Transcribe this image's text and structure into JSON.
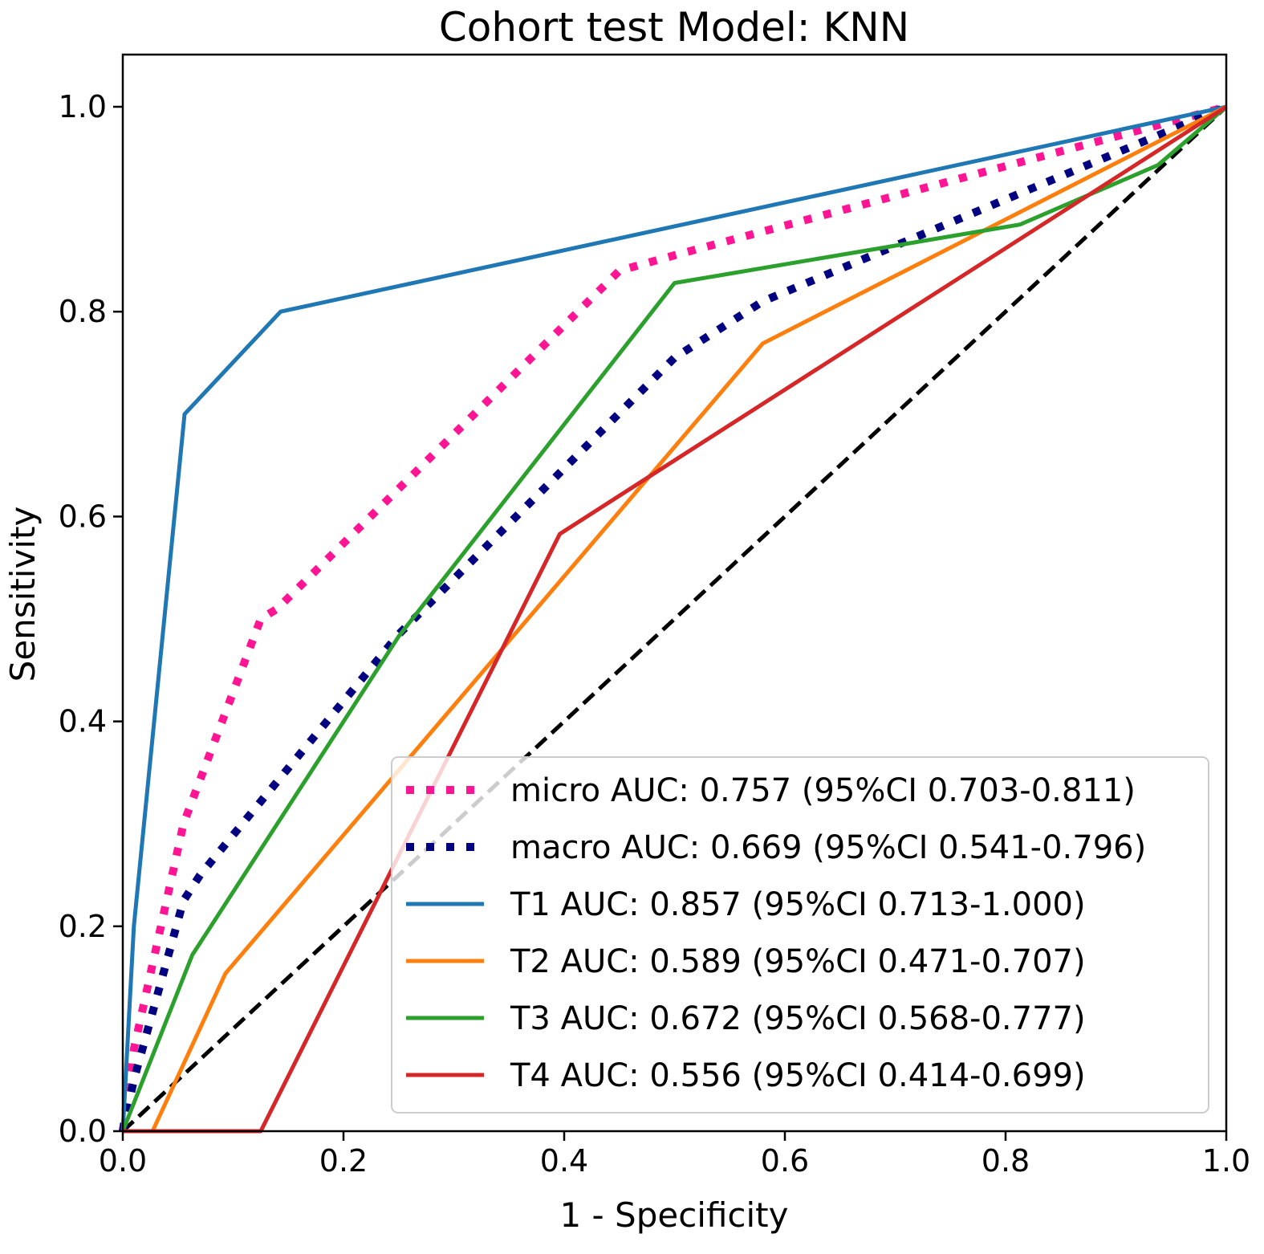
{
  "chart_data": {
    "type": "line",
    "title": "Cohort test Model: KNN",
    "xlabel": "1 - Specificity",
    "ylabel": "Sensitivity",
    "xlim": [
      0,
      1
    ],
    "ylim": [
      0,
      1.05
    ],
    "xticks": [
      "0.0",
      "0.2",
      "0.4",
      "0.6",
      "0.8",
      "1.0"
    ],
    "yticks": [
      "0.0",
      "0.2",
      "0.4",
      "0.6",
      "0.8",
      "1.0"
    ],
    "grid": false,
    "legend_position": "lower-right",
    "series": [
      {
        "key": "micro",
        "name": "micro AUC: 0.757 (95%CI 0.703-0.811)",
        "color": "#ff1493",
        "style": "dotted",
        "x": [
          0,
          0.01,
          0.055,
          0.125,
          0.14,
          0.45,
          0.5,
          1.0
        ],
        "y": [
          0,
          0.08,
          0.3,
          0.5,
          0.51,
          0.84,
          0.855,
          1.0
        ]
      },
      {
        "key": "macro",
        "name": "macro AUC: 0.669 (95%CI 0.541-0.796)",
        "color": "#000080",
        "style": "dotted",
        "x": [
          0,
          0.01,
          0.055,
          0.07,
          0.25,
          0.5,
          0.58,
          1.0
        ],
        "y": [
          0,
          0.05,
          0.225,
          0.25,
          0.485,
          0.755,
          0.81,
          1.0
        ]
      },
      {
        "key": "T1",
        "name": "T1 AUC: 0.857 (95%CI 0.713-1.000)",
        "color": "#1f77b4",
        "style": "solid",
        "x": [
          0,
          0.01,
          0.056,
          0.143,
          1.0
        ],
        "y": [
          0,
          0.2,
          0.7,
          0.8,
          1.0
        ]
      },
      {
        "key": "T2",
        "name": "T2 AUC: 0.589 (95%CI 0.471-0.707)",
        "color": "#ff7f0e",
        "style": "solid",
        "x": [
          0.027,
          0.093,
          0.58,
          1.0
        ],
        "y": [
          0,
          0.154,
          0.769,
          1.0
        ]
      },
      {
        "key": "T3",
        "name": "T3 AUC: 0.672 (95%CI 0.568-0.777)",
        "color": "#2ca02c",
        "style": "solid",
        "x": [
          0,
          0.063,
          0.25,
          0.5,
          0.813,
          0.938,
          1.0
        ],
        "y": [
          0,
          0.172,
          0.483,
          0.828,
          0.885,
          0.943,
          1.0
        ]
      },
      {
        "key": "T4",
        "name": "T4 AUC: 0.556 (95%CI 0.414-0.699)",
        "color": "#d62728",
        "style": "solid",
        "x": [
          0,
          0.125,
          0.396,
          1.0
        ],
        "y": [
          0,
          0,
          0.583,
          1.0
        ]
      },
      {
        "key": "chance",
        "name": "",
        "color": "#000000",
        "style": "dashed",
        "x": [
          0,
          1
        ],
        "y": [
          0,
          1
        ]
      }
    ]
  }
}
